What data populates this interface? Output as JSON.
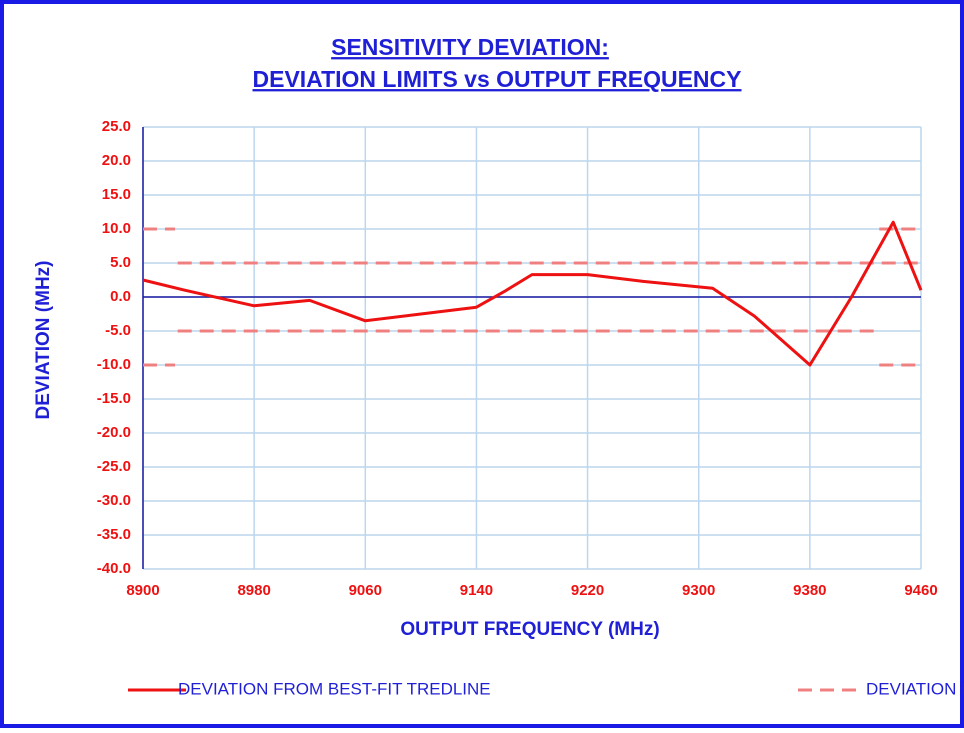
{
  "chart_data": {
    "type": "line",
    "title": [
      "SENSITIVITY DEVIATION:",
      "DEVIATION LIMITS vs OUTPUT FREQUENCY"
    ],
    "xlabel": "OUTPUT FREQUENCY  (MHz)",
    "ylabel": "DEVIATION  (MHz)",
    "xlim": [
      8900,
      9460
    ],
    "xticks": [
      8900,
      8980,
      9060,
      9140,
      9220,
      9300,
      9380,
      9460
    ],
    "ylim": [
      -40,
      25
    ],
    "yticks": [
      {
        "value": 25,
        "label": "25.0"
      },
      {
        "value": 20,
        "label": "20.0"
      },
      {
        "value": 15,
        "label": "15.0"
      },
      {
        "value": 10,
        "label": "10.0"
      },
      {
        "value": 5,
        "label": "5.0"
      },
      {
        "value": 0,
        "label": "0.0"
      },
      {
        "value": -5,
        "label": "-5.0"
      },
      {
        "value": -10,
        "label": "-10.0"
      },
      {
        "value": -15,
        "label": "-15.0"
      },
      {
        "value": -20,
        "label": "-20.0"
      },
      {
        "value": -25,
        "label": "-25.0"
      },
      {
        "value": -30,
        "label": "-30.0"
      },
      {
        "value": -35,
        "label": "-35.0"
      },
      {
        "value": -40,
        "label": "-40.0"
      }
    ],
    "grid": true,
    "legend": "bottom",
    "series": [
      {
        "name": "DEVIATION FROM BEST-FIT TREDLINE",
        "color": "#ee1111",
        "dashed": false,
        "x": [
          8900,
          8930,
          8980,
          9020,
          9060,
          9100,
          9140,
          9160,
          9180,
          9220,
          9260,
          9310,
          9340,
          9380,
          9410,
          9440,
          9460
        ],
        "values": [
          2.5,
          1.0,
          -1.3,
          -0.5,
          -3.5,
          -2.5,
          -1.5,
          0.8,
          3.3,
          3.3,
          2.3,
          1.3,
          -2.8,
          -10,
          0,
          11,
          1
        ]
      },
      {
        "name": "DEVIATION LIMITS",
        "color": "#f08080",
        "dashed": true,
        "x": [
          8900,
          8923,
          null,
          8925,
          9460,
          null,
          8925,
          9430,
          null,
          8900,
          8923,
          null,
          9430,
          9460,
          null,
          9430,
          9460
        ],
        "values": [
          10,
          10,
          null,
          5,
          5,
          null,
          -5,
          -5,
          null,
          -10,
          -10,
          null,
          10,
          10,
          null,
          -10,
          -10
        ]
      }
    ]
  }
}
